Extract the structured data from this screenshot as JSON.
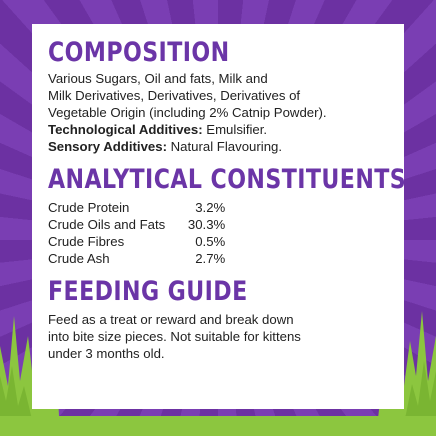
{
  "composition": {
    "title": "COMPOSITION",
    "lines": [
      "Various Sugars, Oil and fats, Milk and",
      "Milk Derivatives, Derivatives, Derivatives of",
      "Vegetable Origin (including 2% Catnip Powder)."
    ],
    "tech_label": "Technological Additives:",
    "tech_value": " Emulsifier.",
    "sensory_label": "Sensory Additives:",
    "sensory_value": " Natural Flavouring."
  },
  "analytical": {
    "title": "ANALYTICAL CONSTITUENTS",
    "rows": [
      {
        "name": "Crude Protein",
        "value": "3.2%"
      },
      {
        "name": "Crude Oils and Fats",
        "value": "30.3%"
      },
      {
        "name": "Crude Fibres",
        "value": "0.5%"
      },
      {
        "name": "Crude Ash",
        "value": "2.7%"
      }
    ]
  },
  "feeding": {
    "title": "FEEDING GUIDE",
    "lines": [
      "Feed as a treat or reward and break down",
      "into bite size pieces. Not suitable for kittens",
      "under 3 months old."
    ]
  },
  "colors": {
    "heading": "#6b35a7",
    "background": "#6c31a2",
    "grass": "#8cc63f"
  }
}
